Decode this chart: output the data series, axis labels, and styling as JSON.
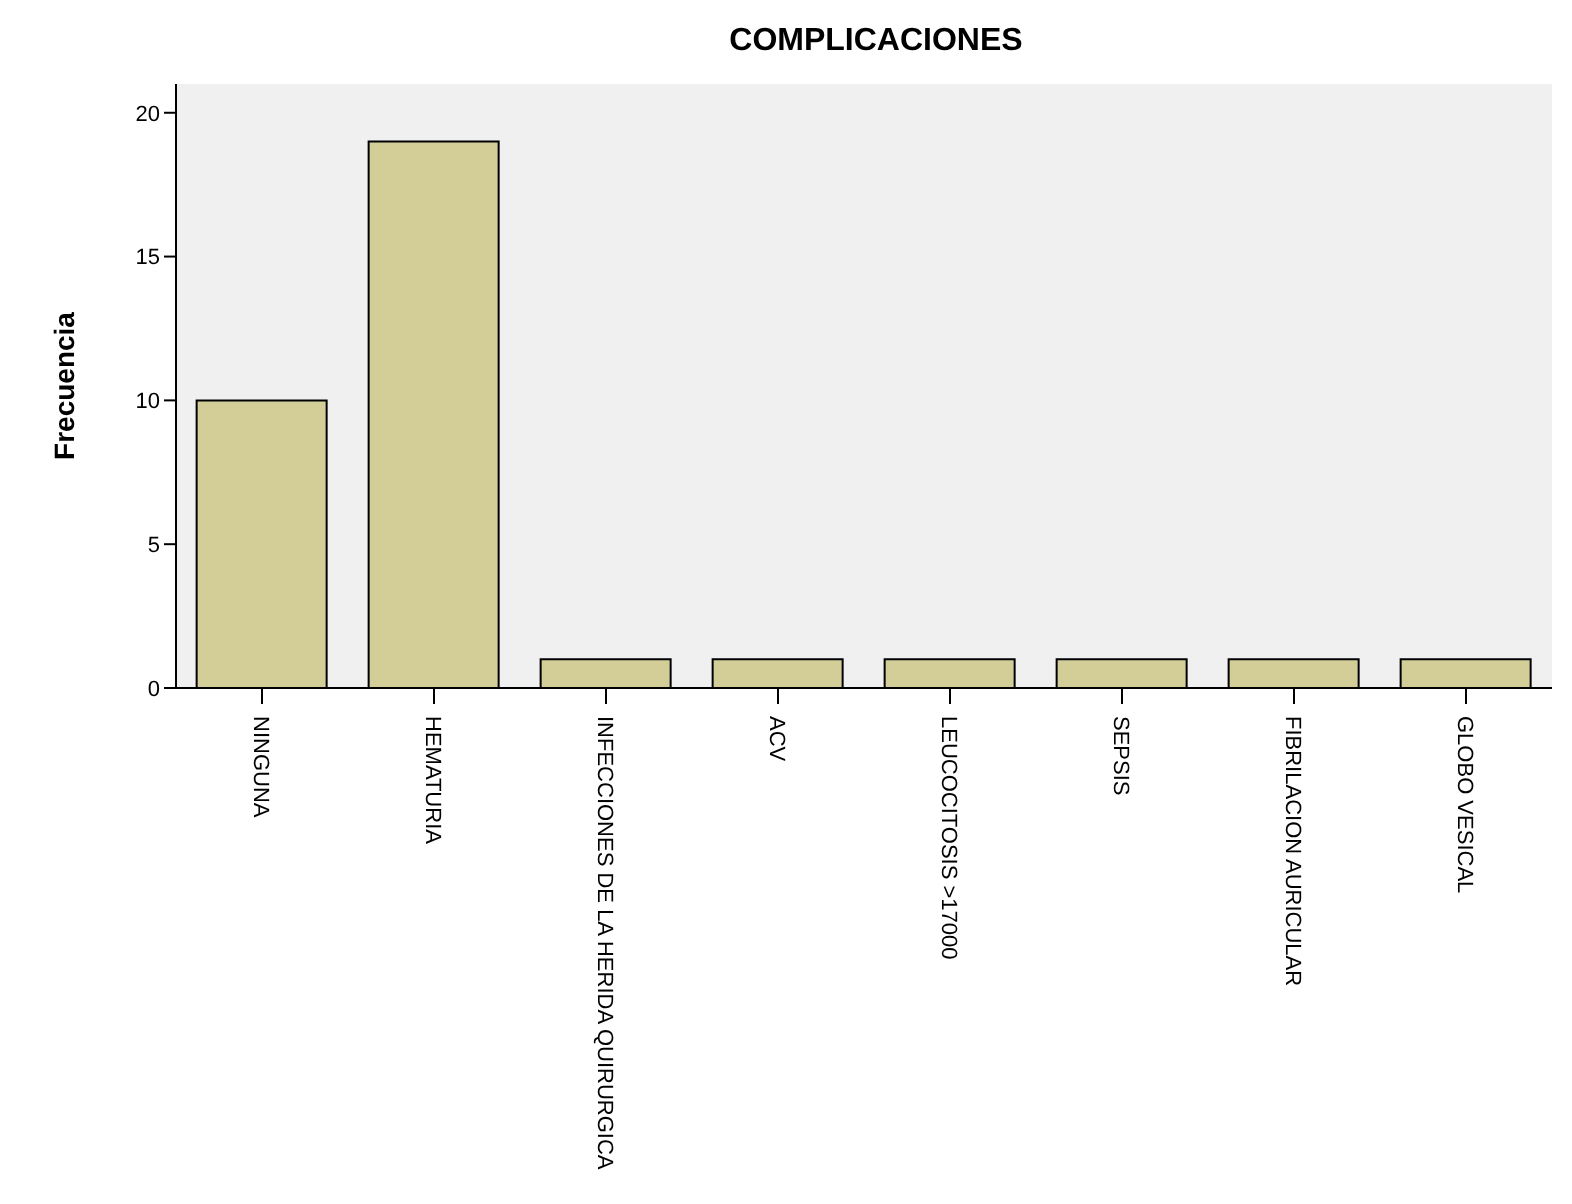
{
  "chart_data": {
    "type": "bar",
    "title": "COMPLICACIONES",
    "ylabel": "Frecuencia",
    "categories": [
      "NINGUNA",
      "HEMATURIA",
      "INFECCIONES DE LA HERIDA QUIRURGICA",
      "ACV",
      "LEUCOCITOSIS >17000",
      "SEPSIS",
      "FIBRILACION AURICULAR",
      "GLOBO VESICAL"
    ],
    "values": [
      10,
      19,
      1,
      1,
      1,
      1,
      1,
      1
    ],
    "color": "#d3ce98",
    "ylim": [
      0,
      21
    ],
    "yticks": [
      0,
      5,
      10,
      15,
      20
    ]
  }
}
